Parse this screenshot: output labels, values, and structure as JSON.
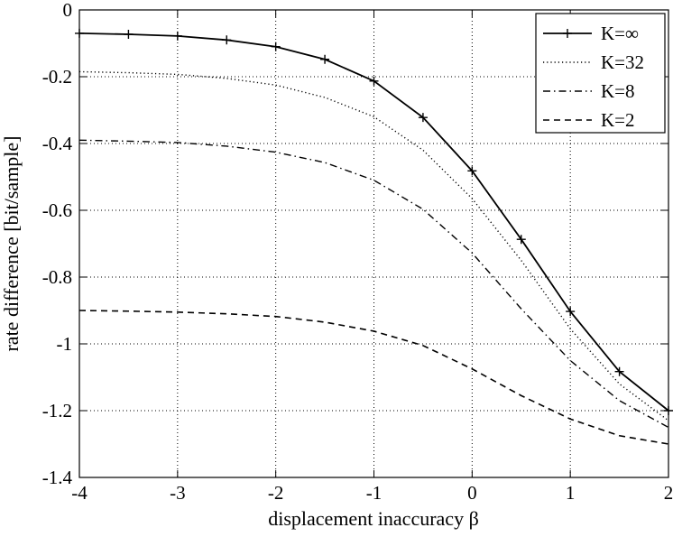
{
  "chart_data": {
    "type": "line",
    "title": "",
    "xlabel": "displacement inaccuracy β",
    "ylabel": "rate difference [bit/sample]",
    "xlim": [
      -4,
      2
    ],
    "ylim": [
      -1.4,
      0
    ],
    "xticks": [
      -4,
      -3,
      -2,
      -1,
      0,
      1,
      2
    ],
    "xtick_labels": [
      "-4",
      "-3",
      "-2",
      "-1",
      "0",
      "1",
      "2"
    ],
    "yticks": [
      0,
      -0.2,
      -0.4,
      -0.6,
      -0.8,
      -1,
      -1.2,
      -1.4
    ],
    "ytick_labels": [
      "0",
      "-0.2",
      "-0.4",
      "-0.6",
      "-0.8",
      "-1",
      "-1.2",
      "-1.4"
    ],
    "grid": true,
    "legend_position": "top-right",
    "x": [
      -4,
      -3.5,
      -3,
      -2.5,
      -2,
      -1.5,
      -1,
      -0.5,
      0,
      0.5,
      1,
      1.5,
      2
    ],
    "series": [
      {
        "name": "K=∞",
        "style": "solid-plus",
        "values": [
          -0.07,
          -0.073,
          -0.078,
          -0.09,
          -0.11,
          -0.148,
          -0.213,
          -0.322,
          -0.482,
          -0.687,
          -0.903,
          -1.083,
          -1.2
        ]
      },
      {
        "name": "K=32",
        "style": "dotted",
        "values": [
          -0.185,
          -0.188,
          -0.193,
          -0.205,
          -0.225,
          -0.262,
          -0.32,
          -0.42,
          -0.565,
          -0.75,
          -0.955,
          -1.12,
          -1.23
        ]
      },
      {
        "name": "K=8",
        "style": "dash-dot",
        "values": [
          -0.39,
          -0.393,
          -0.397,
          -0.408,
          -0.426,
          -0.457,
          -0.51,
          -0.597,
          -0.728,
          -0.895,
          -1.05,
          -1.17,
          -1.25
        ]
      },
      {
        "name": "K=2",
        "style": "dashed",
        "values": [
          -0.9,
          -0.902,
          -0.905,
          -0.91,
          -0.918,
          -0.935,
          -0.962,
          -1.005,
          -1.075,
          -1.155,
          -1.225,
          -1.275,
          -1.3
        ]
      }
    ]
  }
}
